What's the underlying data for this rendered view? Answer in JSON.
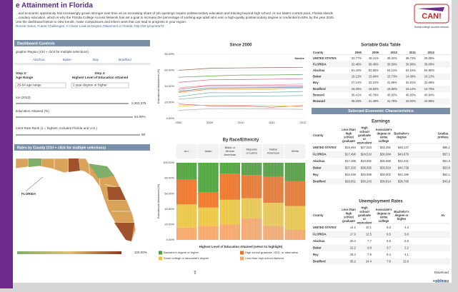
{
  "header": {
    "title": "e Attainment in Florida",
    "intro": [
      "...and economic opportunity has increasingly grown stronger over time as an increasing share of job openings require postsecondary education and training beyond high school. At our state's current pace, Florida stands",
      "...condary education, which is why the Florida College Access Network has set a goal to increase the percentage of working-age adult who earn a high-quality postsecondary degree or credential to 60% by the year 2025.",
      "Use the dashboard below to view trends, make comparisons and inform work that can lead to progress in your region.",
      "Recent Gains, Future Challenges: A Closer Look at Degree Attainment in Florida: http://bit.ly/1pm0a72"
    ],
    "logo": "CAN!",
    "logo_sub": "florida college access network"
  },
  "controls": {
    "title": "Dashboard Controls",
    "region_label": "graphic Region (Ctrl + click for multiple selections)",
    "regions": [
      "Alachua",
      "Baker",
      "Bay",
      "Bradford"
    ],
    "step3": "Step 3:",
    "step3_label": "Age Range",
    "step4": "Step 4:",
    "step4_label": "Highest Level of Education Attained",
    "age_value": "25-64 age range",
    "edu_value": "2 year degree or higher",
    "population_label": "ion (2013)",
    "population_value": "2,302,375",
    "attained_label": "Education Attained (%)",
    "attained_value": "54.90%",
    "rank_label": "ment Rate Rank (1 = highest, includes Florida and U.S.)",
    "rank_value": "69",
    "map_title": "Rates by County (Ctrl + click for multiple selections)",
    "map_label": "FLORIDA",
    "legend_max": "100.00%"
  },
  "chart_data": [
    {
      "type": "line",
      "title": "Since 2000",
      "y_label": "Educational Attainment (%)",
      "annotation": "Hardee",
      "categories": [
        "2000",
        "2009",
        "2010",
        "2011",
        "2012"
      ],
      "ylim": [
        0,
        80
      ],
      "yticks": [
        {
          "value": 0,
          "label": "0.00%"
        },
        {
          "value": 20,
          "label": "20.00%"
        },
        {
          "value": 40,
          "label": "40.00%"
        },
        {
          "value": 60,
          "label": "60.00%"
        },
        {
          "value": 80,
          "label": "80.00%"
        }
      ],
      "series": [
        {
          "color": "#4e79a7",
          "values": [
            33.8,
            38.1,
            38.3,
            38.7,
            39.1
          ]
        },
        {
          "color": "#f28e2b",
          "values": [
            32.5,
            36.5,
            36.6,
            37.0,
            38.1
          ]
        },
        {
          "color": "#59a14f",
          "values": [
            51.4,
            52.9,
            54.1,
            54.2,
            54.9
          ]
        },
        {
          "color": "#e15759",
          "values": [
            18.1,
            15.8,
            15.7,
            14.1,
            16.1
          ]
        },
        {
          "color": "#76b7b2",
          "values": [
            27.1,
            32.2,
            32.0,
            32.8,
            33.6
          ]
        },
        {
          "color": "#edc948",
          "values": [
            15.3,
            16.8,
            16.6,
            16.1,
            14.8
          ]
        },
        {
          "color": "#b07aa1",
          "values": [
            36.4,
            40.8,
            40.9,
            40.8,
            40.8
          ]
        },
        {
          "color": "#ff9da7",
          "values": [
            38.2,
            41.5,
            41.8,
            42.0,
            43.0
          ]
        },
        {
          "color": "#9c755f",
          "values": [
            60.1,
            62.5,
            63.0,
            63.4,
            63.8
          ]
        },
        {
          "color": "#bab0ac",
          "values": [
            10.2,
            12.1,
            12.4,
            11.8,
            11.5
          ]
        },
        {
          "color": "#86bcb6",
          "values": [
            24.0,
            27.5,
            28.1,
            28.0,
            28.6
          ]
        },
        {
          "color": "#d37295",
          "values": [
            45.0,
            48.2,
            48.5,
            49.0,
            49.6
          ]
        }
      ]
    },
    {
      "type": "bar",
      "stacked": true,
      "title": "By Race/Ethnicity",
      "y_label": "Educational Attainment (%)",
      "x_label": "Highest Level of Education Attained (select to highlight)",
      "categories": [
        "ALL",
        "Asian",
        "Black or African American",
        "Hispanic or Latino",
        "Native American",
        "White"
      ],
      "ylim": [
        0,
        100
      ],
      "yticks": [
        {
          "value": 0,
          "label": "0.00%"
        },
        {
          "value": 20,
          "label": "20.00%"
        },
        {
          "value": 40,
          "label": "40.00%"
        },
        {
          "value": 60,
          "label": "60.00%"
        },
        {
          "value": 80,
          "label": "80.00%"
        },
        {
          "value": 100,
          "label": "100.00%"
        }
      ],
      "series": [
        {
          "name": "Bachelor's degree or higher",
          "color": "#4e9f3d",
          "values": [
            22,
            38,
            14,
            16,
            18,
            24
          ]
        },
        {
          "name": "High school graduate, GED, or alternative",
          "color": "#e8742a",
          "values": [
            32,
            20,
            34,
            30,
            34,
            32
          ]
        },
        {
          "name": "Some college or associate's degree",
          "color": "#e8c547",
          "values": [
            30,
            24,
            32,
            26,
            30,
            31
          ]
        },
        {
          "name": "Less than high school diploma",
          "color": "#f4a66a",
          "values": [
            16,
            18,
            20,
            28,
            18,
            13
          ]
        }
      ]
    }
  ],
  "data_table": {
    "title": "Sortable Data Table",
    "columns": [
      "County",
      "2000",
      "2009",
      "2010",
      "2011",
      "2012"
    ],
    "rows": [
      [
        "UNITED STATES",
        "33.77%",
        "38.11%",
        "38.32%",
        "38.73%",
        "39.08%"
      ],
      [
        "FLORIDA",
        "32.46%",
        "36.48%",
        "36.59%",
        "36.96%",
        "38.08%"
      ],
      [
        "Alachua",
        "51.42%",
        "52.85%",
        "54.14%",
        "54.15%",
        "54.90%"
      ],
      [
        "Baker",
        "18.12%",
        "15.84%",
        "15.73%",
        "14.09%",
        "16.13%"
      ],
      [
        "Bay",
        "27.14%",
        "32.22%",
        "31.95%",
        "32.81%",
        "33.58%"
      ],
      [
        "Bradford",
        "15.25%",
        "16.82%",
        "16.58%",
        "16.12%",
        "14.76%"
      ],
      [
        "Brevard",
        "36.41%",
        "40.78%",
        "40.93%",
        "40.83%",
        "40.84%"
      ],
      [
        "Broward",
        "38.15%",
        "41.46%",
        "41.78%",
        "42.02%",
        "42.99%"
      ]
    ]
  },
  "economic": {
    "title": "Selected Economic Characteristics",
    "earnings": {
      "title": "Earnings",
      "columns": [
        "County",
        "Less than high school graduate",
        "High school graduate or equivalent",
        "Associate's degree or some college",
        "Bachelor's degree",
        "Gradua profess"
      ],
      "rows": [
        [
          "UNITED STATES",
          "$19,464",
          "$27,024",
          "$32,481",
          "$48,147",
          "$65,1"
        ],
        [
          "FLORIDA",
          "$17,490",
          "$24,510",
          "$30,084",
          "$43,679",
          "$57,1"
        ],
        [
          "Alachua",
          "$17,188",
          "$23,582",
          "$30,666",
          "$42,221",
          "$51,0"
        ],
        [
          "Baker",
          "$27,333",
          "$38,655",
          "$35,818",
          "$40,739",
          "$53,8"
        ],
        [
          "Bay",
          "$16,446",
          "$26,598",
          "$30,002",
          "$42,186",
          "$52,1"
        ],
        [
          "Bradford",
          "$18,951",
          "$30,243",
          "$30,814",
          "$36,788",
          "$43,9"
        ]
      ]
    },
    "unemployment": {
      "title": "Unemployment Rates",
      "columns": [
        "County",
        "Less than high school graduate",
        "High school graduate or equivalent",
        "Associate's degree or some college",
        "Bachelor's degree or higher",
        "Av"
      ],
      "rows": [
        [
          "UNITED STATES",
          "14.2",
          "10.1",
          "8.3",
          "4.3",
          ""
        ],
        [
          "FLORIDA",
          "17.9",
          "12.5",
          "9.5",
          "5.6",
          ""
        ],
        [
          "Alachua",
          "20.4",
          "7.7",
          "8.5",
          "5.6",
          ""
        ],
        [
          "Baker",
          "22.2",
          "9.8",
          "3.7",
          "2.2",
          ""
        ],
        [
          "Bay",
          "18.4",
          "7.9",
          "8.4",
          "4.1",
          ""
        ],
        [
          "Bradford",
          "35.2",
          "14.4",
          "7.8",
          "12.6",
          ""
        ]
      ]
    }
  },
  "footer": {
    "download": "Download",
    "brand": "+ableau"
  }
}
